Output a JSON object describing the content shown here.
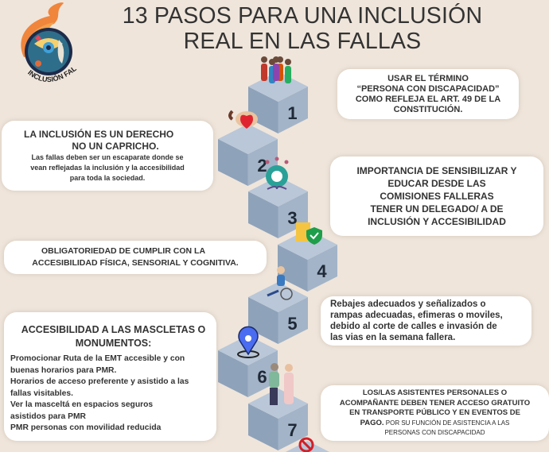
{
  "title": {
    "line1": "13 PASOS PARA UNA INCLUSIÓN",
    "line2": "REAL EN LAS FALLAS"
  },
  "logo": {
    "text": "INCLUSIÓN FALLERA"
  },
  "steps": [
    "1",
    "2",
    "3",
    "4",
    "5",
    "6",
    "7"
  ],
  "boxes": {
    "termino": {
      "lines": [
        "USAR EL TÉRMINO",
        "“PERSONA CON DISCAPACIDAD”",
        "COMO REFLEJA EL ART. 49 DE LA",
        "CONSTITUCIÓN."
      ]
    },
    "derecho": {
      "head": [
        "LA INCLUSIÓN ES UN DERECHO",
        "NO UN CAPRICHO."
      ],
      "body": [
        "Las fallas deben ser un escaparate donde se",
        "vean reflejadas la inclusión y la accesibilidad",
        "para toda la sociedad."
      ]
    },
    "sensibilizar": {
      "lines": [
        "IMPORTANCIA DE SENSIBILIZAR Y",
        "EDUCAR DESDE LAS",
        "COMISIONES FALLERAS",
        "TENER UN DELEGADO/ A DE",
        "INCLUSIÓN Y ACCESIBILIDAD"
      ]
    },
    "obligatoriedad": {
      "lines": [
        "OBLIGATORIEDAD DE CUMPLIR CON LA",
        "ACCESIBILIDAD FÍSICA, SENSORIAL Y COGNITIVA."
      ]
    },
    "rebajes": {
      "lines": [
        "Rebajes adecuados y señalizados o",
        "rampas adecuadas, efimeras o moviles,",
        "debido al corte de calles e invasión de",
        "las vias en la semana fallera."
      ]
    },
    "mascletas": {
      "head": [
        "ACCESIBILIDAD A LAS MASCLETAS O",
        "MONUMENTOS:"
      ],
      "body": [
        "Promocionar Ruta de la EMT accesible y con",
        "buenas horarios para PMR.",
        "Horarios de acceso preferente y asistido a las",
        "fallas visitables.",
        "Ver la masceltá en espacios seguros",
        "asistidos para PMR",
        "PMR personas con movilidad reducida"
      ]
    },
    "asistentes": {
      "head": [
        "LOS/LAS ASISTENTES PERSONALES O",
        "ACOMPAÑANTE DEBEN TENER ACCESO  GRATUITO",
        "EN TRANSPORTE PÚBLICO Y EN EVENTOS DE"
      ],
      "pago": "PAGO.",
      "tail1": " POR SU FUNCIÓN DE ASISTENCIA A LAS",
      "tail2": "PERSONAS CON DISCAPACIDAD"
    }
  },
  "colors": {
    "background": "#efe5db",
    "cube_top": "#b9c7d8",
    "cube_left": "#8ea2ba",
    "cube_right": "#a3b4c8",
    "step_number": "#1f2937",
    "pin": "#4a6cf0"
  }
}
